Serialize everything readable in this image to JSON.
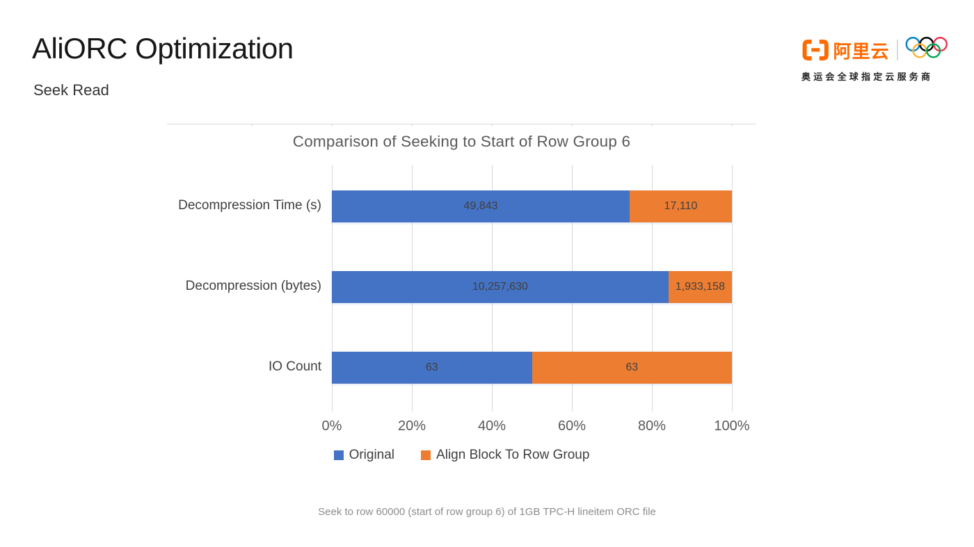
{
  "slide": {
    "title": "AliORC Optimization",
    "subtitle": "Seek Read",
    "caption": "Seek to row 60000 (start of row group 6) of 1GB TPC-H lineitem ORC file"
  },
  "logo": {
    "brand": "阿里云",
    "tagline": "奥运会全球指定云服务商",
    "brand_color": "#FF6A00",
    "olympic_ring_colors": [
      "#0081C8",
      "#000000",
      "#EE334E",
      "#FCB131",
      "#00A651"
    ]
  },
  "chart_data": {
    "type": "bar",
    "subtype": "horizontal-100pct-stacked",
    "title": "Comparison of Seeking to Start of Row Group 6",
    "categories": [
      "Decompression Time (s)",
      "Decompression (bytes)",
      "IO Count"
    ],
    "series": [
      {
        "name": "Original",
        "color": "#4472C4",
        "values": [
          49843,
          10257630,
          63
        ],
        "labels": [
          "49,843",
          "10,257,630",
          "63"
        ]
      },
      {
        "name": "Align Block To Row Group",
        "color": "#ED7D31",
        "values": [
          17110,
          1933158,
          63
        ],
        "labels": [
          "17,110",
          "1,933,158",
          "63"
        ]
      }
    ],
    "x_ticks": [
      "0%",
      "20%",
      "40%",
      "60%",
      "80%",
      "100%"
    ],
    "xlim": [
      0,
      100
    ],
    "grid": true,
    "gridline_color": "#d9d9d9",
    "legend_position": "bottom"
  }
}
